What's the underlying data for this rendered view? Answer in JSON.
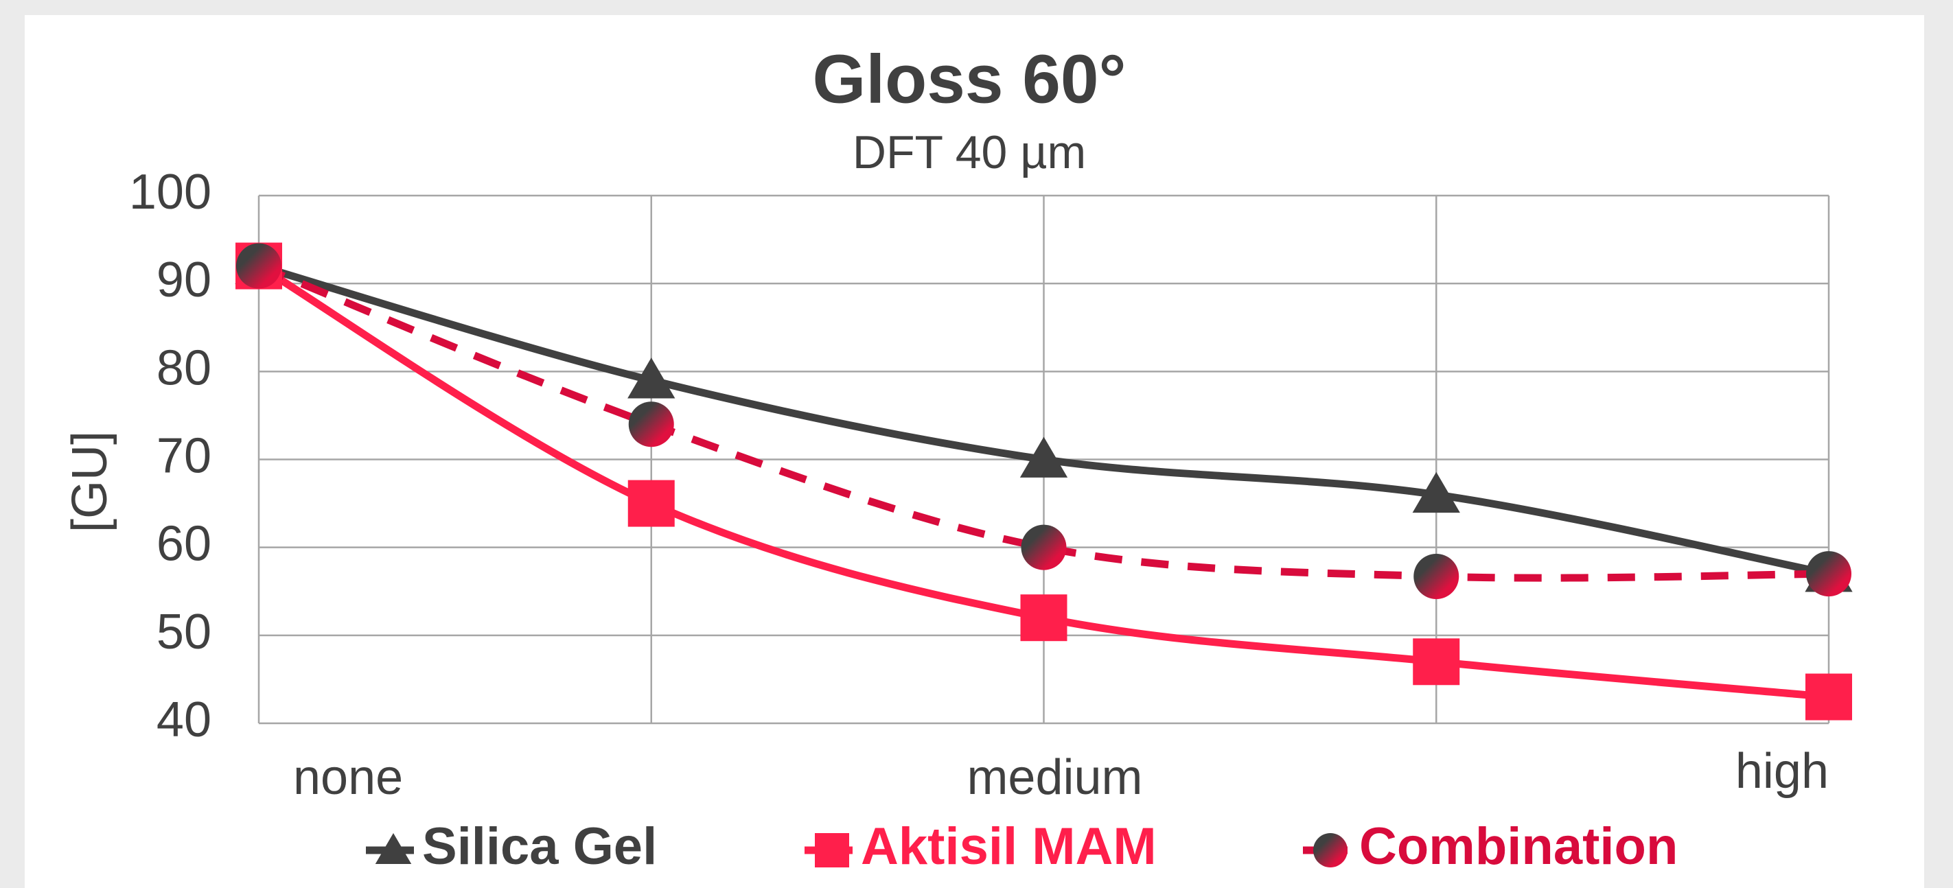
{
  "chart_data": {
    "type": "line",
    "title": "Gloss 60°",
    "subtitle": "DFT 40 µm",
    "ylabel": "[GU]",
    "categories": [
      "none",
      null,
      "medium",
      null,
      "high"
    ],
    "series": [
      {
        "name": "Silica Gel",
        "color": "#404040",
        "marker": "triangle",
        "dash": false,
        "values": [
          92,
          79,
          70,
          66,
          57
        ]
      },
      {
        "name": "Aktisil MAM",
        "color": "#ff1f4b",
        "marker": "square",
        "dash": false,
        "values": [
          92,
          65,
          52,
          47,
          43
        ]
      },
      {
        "name": "Combination",
        "color": "#d80b3c",
        "marker": "circle",
        "dash": true,
        "values": [
          92,
          74,
          60,
          56.7,
          57
        ]
      }
    ],
    "ylim": [
      40,
      100
    ],
    "yticks": [
      40,
      50,
      60,
      70,
      80,
      90,
      100
    ],
    "grid": true,
    "legend": "bottom"
  }
}
